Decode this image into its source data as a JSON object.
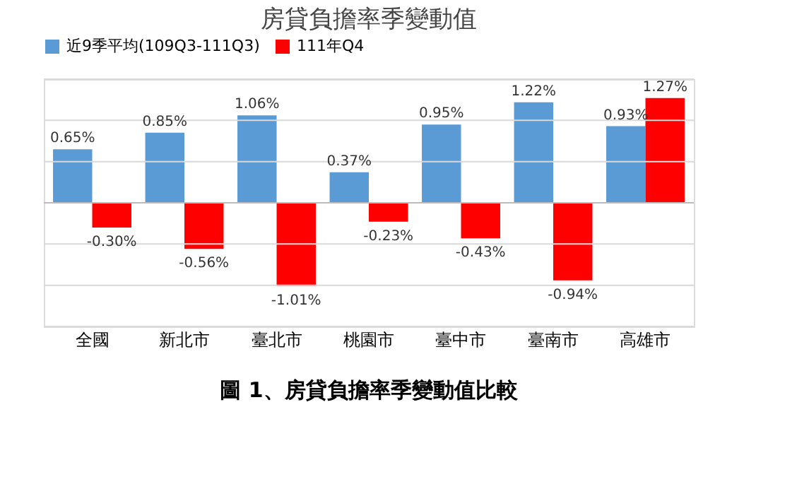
{
  "chart_data": {
    "type": "bar",
    "title": "房貸負擔率季變動值",
    "categories": [
      "全國",
      "新北市",
      "臺北市",
      "桃園市",
      "臺中市",
      "臺南市",
      "高雄市"
    ],
    "series": [
      {
        "name": "近9季平均(109Q3-111Q3)",
        "color": "#5b9bd5",
        "values": [
          0.65,
          0.85,
          1.06,
          0.37,
          0.95,
          1.22,
          0.93
        ],
        "value_labels": [
          "0.65%",
          "0.85%",
          "1.06%",
          "0.37%",
          "0.95%",
          "1.22%",
          "0.93%"
        ]
      },
      {
        "name": "111年Q4",
        "color": "#ff0000",
        "values": [
          -0.3,
          -0.56,
          -1.01,
          -0.23,
          -0.43,
          -0.94,
          1.27
        ],
        "value_labels": [
          "-0.30%",
          "-0.56%",
          "-1.01%",
          "-0.23%",
          "-0.43%",
          "-0.94%",
          "1.27%"
        ]
      }
    ],
    "ylim": [
      -1.5,
      1.5
    ],
    "yticks": [
      {
        "value": -1.5,
        "label": null
      },
      {
        "value": -1.0,
        "label": null
      },
      {
        "value": -0.5,
        "label": null
      },
      {
        "value": 0,
        "label": null
      },
      {
        "value": 0.5,
        "label": null
      },
      {
        "value": 1.0,
        "label": null
      },
      {
        "value": 1.5,
        "label": null
      }
    ],
    "tick_labels": "x",
    "grid": "y",
    "legend": "top",
    "annotations": [
      "圖 1、房貸負擔率季變動值比較"
    ]
  }
}
